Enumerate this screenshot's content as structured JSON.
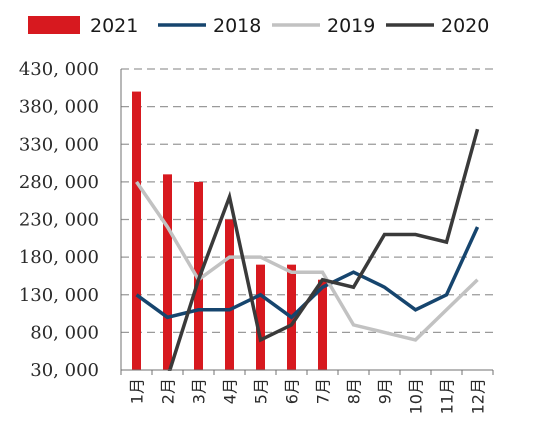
{
  "colors": {
    "2021": "#d7191f",
    "2018": "#16456e",
    "2019": "#c2c2c2",
    "2020": "#3a3a3a",
    "grid": "#9a9a9a",
    "axis": "#707070"
  },
  "chart_data": {
    "type": "bar+line",
    "title": "",
    "xlabel": "",
    "ylabel": "",
    "ylim": [
      30000,
      430000
    ],
    "yticks": [
      30000,
      80000,
      130000,
      180000,
      230000,
      280000,
      330000,
      380000,
      430000
    ],
    "ytick_labels": [
      "30, 000",
      "80, 000",
      "130, 000",
      "180, 000",
      "230, 000",
      "280, 000",
      "330, 000",
      "380, 000",
      "430, 000"
    ],
    "grid": "horizontal dashed",
    "legend_position": "top",
    "categories": [
      "1月",
      "2月",
      "3月",
      "4月",
      "5月",
      "6月",
      "7月",
      "8月",
      "9月",
      "10月",
      "11月",
      "12月"
    ],
    "legend": [
      "2021",
      "2018",
      "2019",
      "2020"
    ],
    "bars": {
      "name": "2021",
      "values": [
        400000,
        290000,
        280000,
        230000,
        170000,
        170000,
        150000
      ]
    },
    "lines": [
      {
        "name": "2018",
        "values": [
          130000,
          100000,
          110000,
          110000,
          130000,
          100000,
          140000,
          160000,
          140000,
          110000,
          130000,
          220000
        ]
      },
      {
        "name": "2019",
        "values": [
          280000,
          220000,
          150000,
          180000,
          180000,
          160000,
          160000,
          90000,
          80000,
          70000,
          110000,
          150000
        ]
      },
      {
        "name": "2020",
        "values": [
          null,
          20000,
          150000,
          260000,
          70000,
          90000,
          150000,
          140000,
          210000,
          210000,
          200000,
          350000
        ]
      }
    ]
  }
}
